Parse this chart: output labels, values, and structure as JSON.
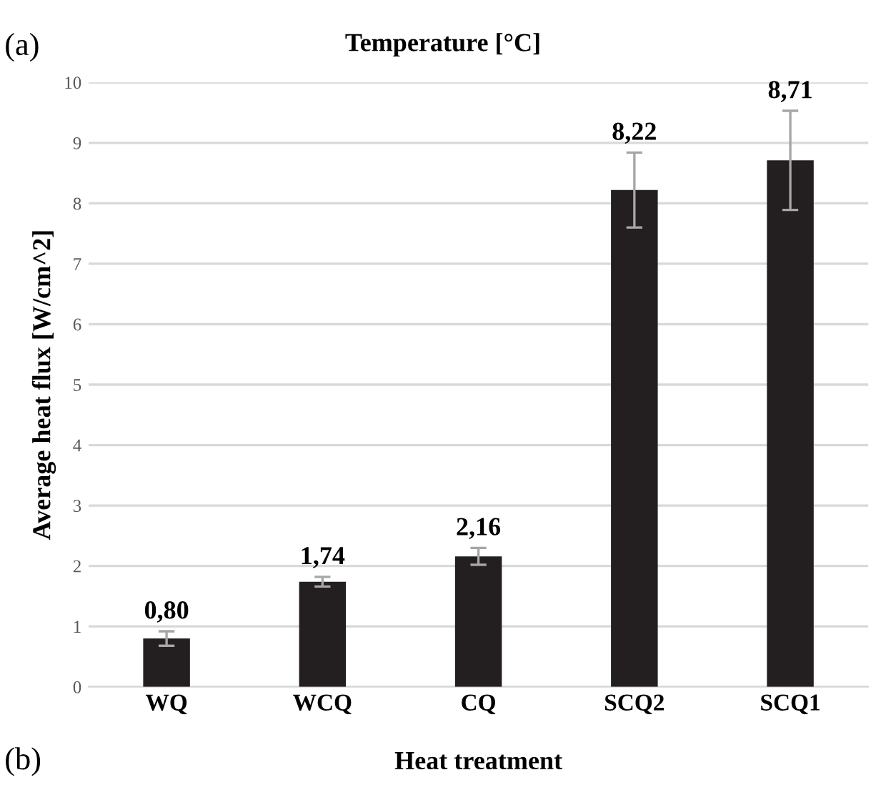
{
  "chart_data": {
    "type": "bar",
    "title": "Temperature [°C]",
    "xlabel": "Heat treatment",
    "ylabel": "Average heat flux [W/cm^2]",
    "categories": [
      "WQ",
      "WCQ",
      "CQ",
      "SCQ2",
      "SCQ1"
    ],
    "values": [
      0.8,
      1.74,
      2.16,
      8.22,
      8.71
    ],
    "errors": [
      0.12,
      0.08,
      0.14,
      0.62,
      0.82
    ],
    "value_labels": [
      "0,80",
      "1,74",
      "2,16",
      "8,22",
      "8,71"
    ],
    "color": "#231f20",
    "ylim": [
      0,
      10
    ],
    "yticks": [
      0,
      1,
      2,
      3,
      4,
      5,
      6,
      7,
      8,
      9,
      10
    ],
    "grid": "y",
    "annotations": [
      "(a)",
      "(b)"
    ]
  }
}
